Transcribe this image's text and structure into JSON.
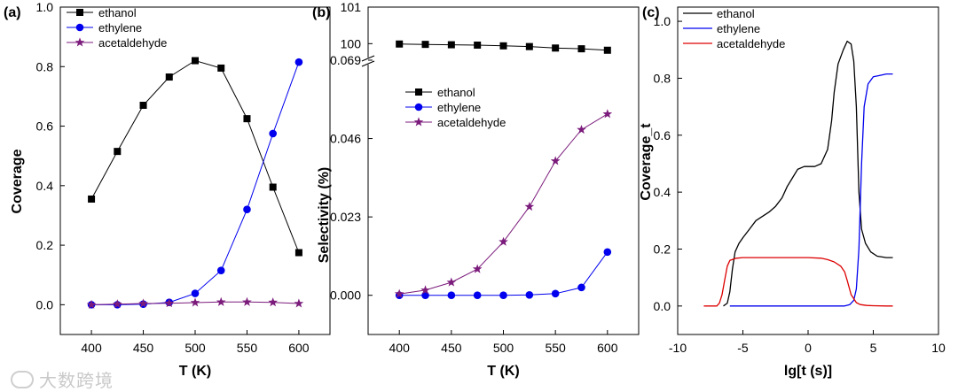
{
  "figure": {
    "watermark": "大数跨境"
  },
  "chart_data": [
    {
      "type": "line",
      "panel_label": "(a)",
      "title": "",
      "xlabel": "T (K)",
      "ylabel": "Coverage",
      "xlim": [
        370,
        630
      ],
      "ylim": [
        -0.1,
        1.0
      ],
      "x_ticks": [
        400,
        450,
        500,
        550,
        600
      ],
      "x_ticklabels": [
        "400",
        "450",
        "500",
        "550",
        "600"
      ],
      "y_ticks": [
        0.0,
        0.2,
        0.4,
        0.6,
        0.8,
        1.0
      ],
      "y_ticklabels": [
        "0.0",
        "0.2",
        "0.4",
        "0.6",
        "0.8",
        "1.0"
      ],
      "grid": false,
      "legend": "top-left",
      "x": [
        400,
        425,
        450,
        475,
        500,
        525,
        550,
        575,
        600
      ],
      "series": [
        {
          "name": "ethanol",
          "color": "#000000",
          "marker": "square",
          "values": [
            0.355,
            0.515,
            0.67,
            0.765,
            0.82,
            0.795,
            0.625,
            0.395,
            0.175
          ]
        },
        {
          "name": "ethylene",
          "color": "#0000ee",
          "marker": "circle",
          "values": [
            0.0,
            0.0,
            0.002,
            0.008,
            0.038,
            0.115,
            0.32,
            0.575,
            0.815
          ]
        },
        {
          "name": "acetaldehyde",
          "color": "#7b1b7b",
          "marker": "star",
          "values": [
            0.0,
            0.002,
            0.004,
            0.005,
            0.007,
            0.009,
            0.009,
            0.008,
            0.004
          ]
        }
      ]
    },
    {
      "type": "line",
      "panel_label": "(b)",
      "title": "",
      "xlabel": "T (K)",
      "ylabel": "Selectivity (%)",
      "xlim": [
        370,
        630
      ],
      "axis_break": true,
      "ylim_upper": [
        99.5,
        101
      ],
      "y_ticks_upper": [
        100,
        101
      ],
      "y_ticklabels_upper": [
        "100",
        "101"
      ],
      "ylim_lower": [
        -0.0115,
        0.069
      ],
      "y_ticks_lower": [
        0.0,
        0.023,
        0.046,
        0.069
      ],
      "y_ticklabels_lower": [
        "0.000",
        "0.023",
        "0.046",
        "0.069"
      ],
      "x_ticks": [
        400,
        450,
        500,
        550,
        600
      ],
      "x_ticklabels": [
        "400",
        "450",
        "500",
        "550",
        "600"
      ],
      "grid": false,
      "legend": "center-left",
      "x": [
        400,
        425,
        450,
        475,
        500,
        525,
        550,
        575,
        600
      ],
      "series": [
        {
          "name": "ethanol",
          "color": "#000000",
          "marker": "square",
          "axis": "upper",
          "values": [
            99.99,
            99.98,
            99.97,
            99.96,
            99.94,
            99.92,
            99.88,
            99.86,
            99.82
          ]
        },
        {
          "name": "ethylene",
          "color": "#0000ee",
          "marker": "circle",
          "axis": "lower",
          "values": [
            0.0,
            0.0,
            0.0,
            0.0,
            0.0,
            0.0001,
            0.0005,
            0.0023,
            0.0127
          ]
        },
        {
          "name": "acetaldehyde",
          "color": "#7b1b7b",
          "marker": "star",
          "axis": "lower",
          "values": [
            0.0004,
            0.0015,
            0.0038,
            0.0077,
            0.0157,
            0.026,
            0.0394,
            0.0486,
            0.0532
          ]
        }
      ]
    },
    {
      "type": "line",
      "panel_label": "(c)",
      "title": "",
      "xlabel": "lg[t (s)]",
      "ylabel": "Coverage_t",
      "xlim": [
        -10,
        10
      ],
      "ylim": [
        -0.1,
        1.05
      ],
      "x_ticks": [
        -10,
        -5,
        0,
        5,
        10
      ],
      "x_ticklabels": [
        "-10",
        "-5",
        "0",
        "5",
        "10"
      ],
      "y_ticks": [
        0.0,
        0.2,
        0.4,
        0.6,
        0.8,
        1.0
      ],
      "y_ticklabels": [
        "0.0",
        "0.2",
        "0.4",
        "0.6",
        "0.8",
        "1.0"
      ],
      "grid": false,
      "legend": "top-left",
      "series": [
        {
          "name": "ethanol",
          "color": "#000000",
          "x": [
            -6.5,
            -6.2,
            -6.0,
            -5.8,
            -5.6,
            -5.3,
            -5.0,
            -4.5,
            -4.0,
            -3.0,
            -2.5,
            -2.0,
            -1.6,
            -1.2,
            -0.8,
            -0.3,
            0.5,
            1.0,
            1.5,
            1.8,
            2.0,
            2.3,
            2.7,
            3.0,
            3.3,
            3.5,
            3.7,
            3.9,
            4.1,
            4.4,
            4.8,
            5.3,
            6.0,
            6.5
          ],
          "y": [
            0.0,
            0.01,
            0.05,
            0.13,
            0.19,
            0.22,
            0.24,
            0.27,
            0.3,
            0.33,
            0.35,
            0.38,
            0.42,
            0.45,
            0.48,
            0.49,
            0.49,
            0.5,
            0.55,
            0.65,
            0.75,
            0.85,
            0.9,
            0.93,
            0.92,
            0.86,
            0.7,
            0.4,
            0.27,
            0.22,
            0.19,
            0.175,
            0.17,
            0.17
          ]
        },
        {
          "name": "ethylene",
          "color": "#0000ee",
          "x": [
            -6.0,
            2.8,
            3.2,
            3.5,
            3.7,
            3.9,
            4.1,
            4.3,
            4.6,
            5.0,
            5.5,
            6.0,
            6.5
          ],
          "y": [
            0.0,
            0.0,
            0.005,
            0.02,
            0.06,
            0.2,
            0.5,
            0.7,
            0.78,
            0.805,
            0.81,
            0.815,
            0.815
          ]
        },
        {
          "name": "acetaldehyde",
          "color": "#dd0000",
          "x": [
            -8.0,
            -7.0,
            -6.8,
            -6.6,
            -6.4,
            -6.2,
            -6.0,
            -5.5,
            -5.0,
            -3.0,
            0.0,
            1.0,
            1.5,
            2.0,
            2.5,
            2.8,
            3.0,
            3.3,
            3.7,
            4.0,
            4.5,
            5.0,
            6.0,
            6.5
          ],
          "y": [
            0.0,
            0.0,
            0.01,
            0.04,
            0.09,
            0.14,
            0.16,
            0.168,
            0.17,
            0.17,
            0.17,
            0.168,
            0.163,
            0.155,
            0.14,
            0.12,
            0.09,
            0.04,
            0.012,
            0.005,
            0.002,
            0.001,
            0.0,
            0.0
          ]
        }
      ]
    }
  ]
}
